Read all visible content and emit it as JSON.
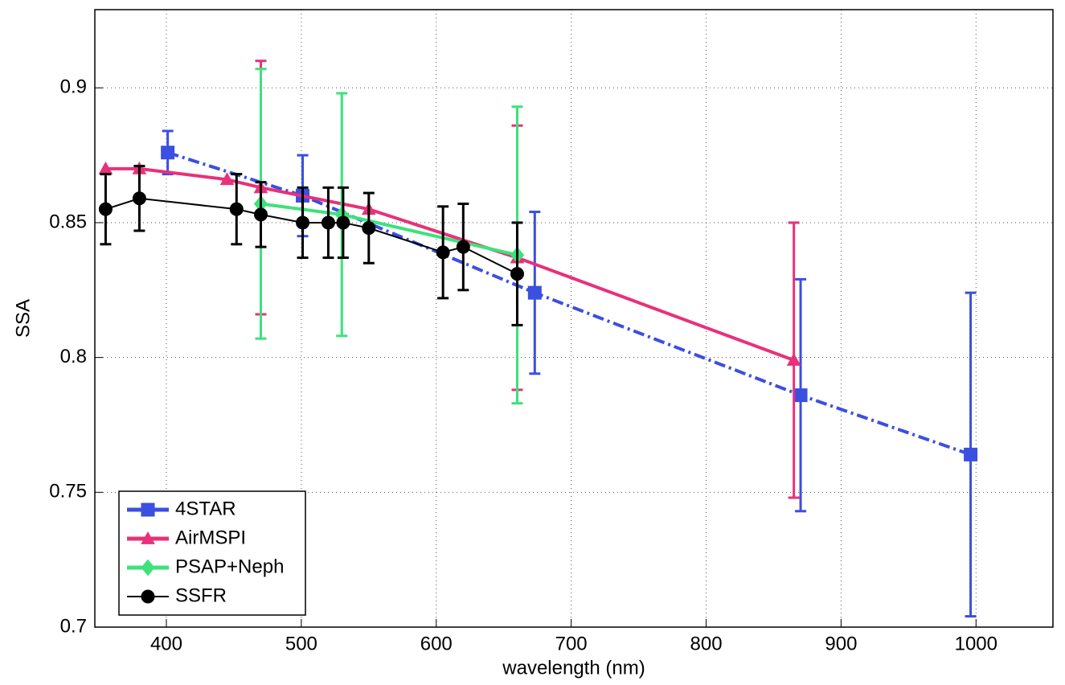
{
  "chart_data": {
    "type": "line",
    "x_label": "wavelength (nm)",
    "y_label": "SSA",
    "xlim": [
      347,
      1057
    ],
    "ylim": [
      0.7,
      0.929
    ],
    "xticks": [
      400,
      500,
      600,
      700,
      800,
      900,
      1000
    ],
    "yticks": [
      0.7,
      0.75,
      0.8,
      0.85,
      0.9
    ],
    "grid": true,
    "legend": "lower left",
    "series": [
      {
        "name": "4STAR",
        "color": "#3b4fe0",
        "marker": "square",
        "dash": "dashdot",
        "x": [
          401,
          501,
          673,
          870,
          996
        ],
        "values": [
          0.876,
          0.86,
          0.824,
          0.786,
          0.764
        ],
        "errors": [
          0.008,
          0.015,
          0.03,
          0.043,
          0.06
        ]
      },
      {
        "name": "AirMSPI",
        "color": "#e8317a",
        "marker": "triangle",
        "dash": "solid",
        "x": [
          355,
          380,
          445,
          470,
          550,
          660,
          865
        ],
        "values": [
          0.87,
          0.87,
          0.866,
          0.863,
          0.855,
          0.837,
          0.799
        ],
        "errors": [
          null,
          null,
          null,
          0.047,
          null,
          0.049,
          0.051
        ]
      },
      {
        "name": "PSAP+Neph",
        "color": "#3de27a",
        "marker": "diamond",
        "dash": "solid",
        "x": [
          470,
          530,
          660
        ],
        "values": [
          0.857,
          0.853,
          0.838
        ],
        "errors": [
          0.05,
          0.045,
          0.055
        ]
      },
      {
        "name": "SSFR",
        "color": "#000000",
        "marker": "circle",
        "dash": "solid",
        "x": [
          355,
          380,
          452,
          470,
          501,
          520,
          531,
          550,
          605,
          620,
          660
        ],
        "values": [
          0.855,
          0.859,
          0.855,
          0.853,
          0.85,
          0.85,
          0.85,
          0.848,
          0.839,
          0.841,
          0.831
        ],
        "errors": [
          0.013,
          0.012,
          0.013,
          0.012,
          0.013,
          0.013,
          0.013,
          0.013,
          0.017,
          0.016,
          0.019
        ]
      }
    ]
  }
}
